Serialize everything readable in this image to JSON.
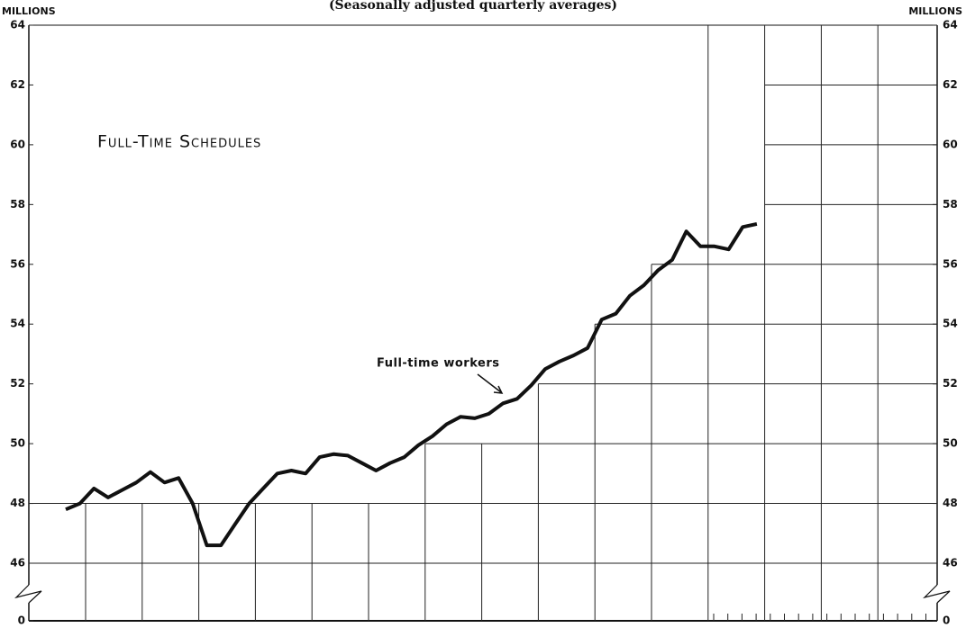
{
  "chart_data": {
    "type": "line",
    "title": "(Seasonally adjusted quarterly averages)",
    "y_axis_label": "MILLIONS",
    "y2_axis_label": "MILLIONS",
    "panel_title": "Full-Time Schedules",
    "annotation": "Full-time workers",
    "categories": [
      null,
      null,
      null,
      null,
      null,
      null,
      null,
      null,
      null,
      null,
      null,
      null,
      null,
      null,
      null,
      null,
      null,
      null,
      null,
      null,
      null,
      null,
      null,
      null,
      null,
      null,
      null,
      null,
      null,
      null,
      null,
      null,
      null,
      null,
      null,
      null,
      null,
      null,
      null,
      null,
      null,
      null,
      null,
      null,
      null,
      null,
      null,
      null,
      null,
      null
    ],
    "series": [
      {
        "name": "Full-time workers",
        "color": "#111111",
        "values": [
          47.8,
          48.0,
          48.5,
          48.2,
          48.45,
          48.7,
          49.05,
          48.7,
          48.85,
          48.0,
          46.6,
          46.6,
          47.3,
          48.0,
          48.5,
          49.0,
          49.1,
          49.0,
          49.55,
          49.65,
          49.6,
          49.35,
          49.1,
          49.35,
          49.55,
          49.95,
          50.25,
          50.65,
          50.9,
          50.85,
          51.0,
          51.35,
          51.5,
          51.95,
          52.5,
          52.75,
          52.95,
          53.2,
          54.15,
          54.35,
          54.95,
          55.3,
          55.8,
          56.15,
          57.1,
          56.6,
          56.6,
          56.5,
          57.25,
          57.35
        ]
      }
    ],
    "ylim": [
      0,
      64
    ],
    "y_break": [
      0,
      46
    ],
    "yticks": [
      0,
      46,
      48,
      50,
      52,
      54,
      56,
      58,
      60,
      62,
      64
    ],
    "grid": true
  }
}
